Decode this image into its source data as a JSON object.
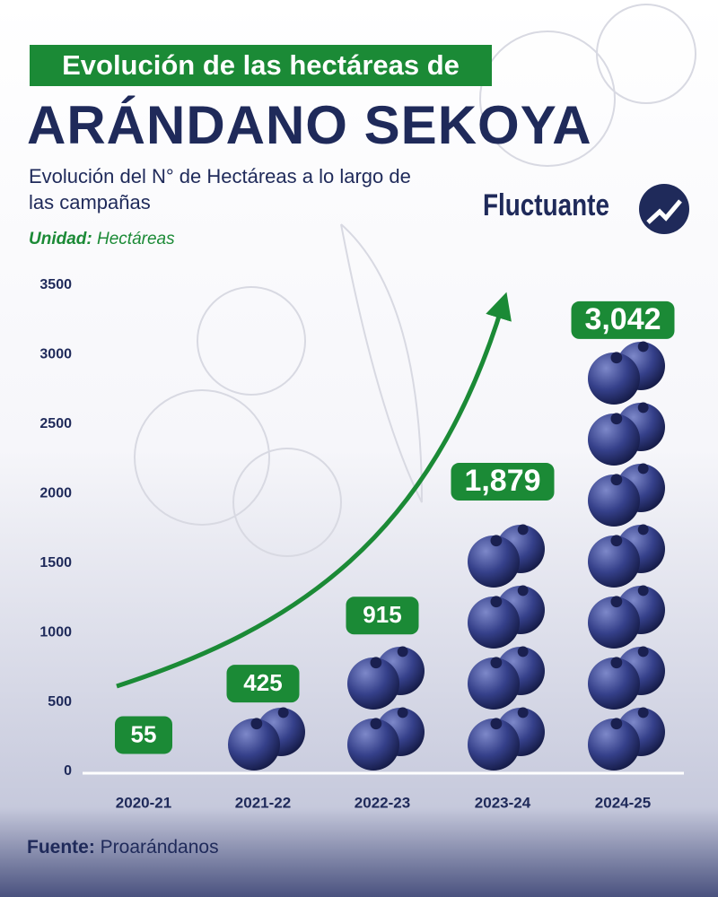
{
  "chart_data": {
    "type": "bar",
    "pretitle": "Evolución de las hectáreas de",
    "title": "ARÁNDANO SEKOYA",
    "subtitle": "Evolución del N° de Hectáreas a lo largo de las campañas",
    "unit_label": "Unidad:",
    "unit": "Hectáreas",
    "brand": "Fluctuante",
    "source_label": "Fuente:",
    "source": "Proarándanos",
    "categories": [
      "2020-21",
      "2021-22",
      "2022-23",
      "2023-24",
      "2024-25"
    ],
    "values": [
      55,
      425,
      915,
      1879,
      3042
    ],
    "value_labels": [
      "55",
      "425",
      "915",
      "1,879",
      "3,042"
    ],
    "color": "#2f3a7a",
    "label_color": "#1b8a36",
    "ylim": [
      0,
      3500
    ],
    "yticks": [
      0,
      500,
      1000,
      1500,
      2000,
      2500,
      3000,
      3500
    ]
  }
}
